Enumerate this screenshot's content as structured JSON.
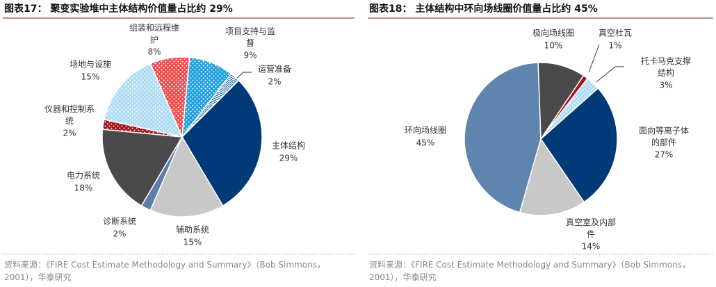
{
  "chart_data": [
    {
      "type": "pie",
      "title": "图表17： 聚变实验堆中主体结构价值量占比约 29%",
      "categories": [
        "主体结构",
        "辅助系统",
        "诊断系统",
        "电力系统",
        "仪器和控制系统",
        "场地与设施",
        "组装和远程维护",
        "项目支持与监督",
        "运营准备"
      ],
      "values": [
        29,
        15,
        2,
        18,
        2,
        15,
        8,
        9,
        2
      ],
      "value_labels": [
        "29%",
        "15%",
        "2%",
        "18%",
        "2%",
        "15%",
        "8%",
        "9%",
        "2%"
      ],
      "colors": [
        "#003a78",
        "#c8c8c8",
        "#5b7fa8",
        "#4a4a4a",
        "#a50f15",
        "#aedcf4",
        "#f04b4b",
        "#1e9fe0",
        "#1f6fb0"
      ],
      "patterns": [
        "none",
        "none",
        "none",
        "none",
        "dots",
        "dots",
        "dots",
        "dots",
        "zigzag"
      ],
      "source": "资料来源：《FIRE Cost Estimate Methodology and Summary》（Bob Simmons，2001），华泰研究"
    },
    {
      "type": "pie",
      "title": "图表18： 主体结构中环向场线圈价值量占比约 45%",
      "categories": [
        "面向等离子体的部件",
        "真空室及内部件",
        "环向场线圈",
        "极向场线圈",
        "真空杜瓦",
        "托卡马克支撑结构"
      ],
      "values": [
        27,
        14,
        45,
        10,
        1,
        3
      ],
      "value_labels": [
        "27%",
        "14%",
        "45%",
        "10%",
        "1%",
        "3%"
      ],
      "colors": [
        "#003a78",
        "#c8c8c8",
        "#5f84ad",
        "#4a4a4a",
        "#a50f15",
        "#aedcf4"
      ],
      "patterns": [
        "none",
        "none",
        "none",
        "none",
        "none",
        "dots"
      ],
      "source": "资料来源：《FIRE Cost Estimate Methodology and Summary》（Bob Simmons，2001），华泰研究"
    }
  ]
}
